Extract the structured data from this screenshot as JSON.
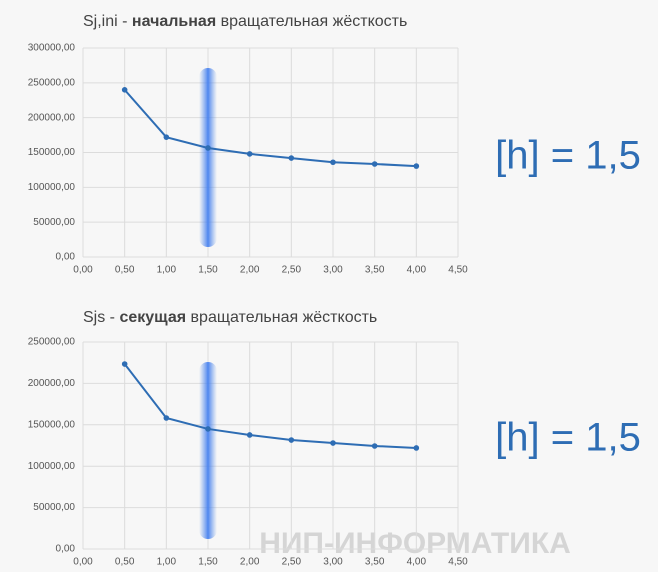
{
  "chart_data": [
    {
      "type": "line",
      "title": {
        "prefix": "Sj,ini - ",
        "bold": "начальная",
        "suffix": " вращательная жёсткость"
      },
      "annotation": "[h] = 1,5",
      "x": [
        0.5,
        1.0,
        1.5,
        2.0,
        2.5,
        3.0,
        3.5,
        4.0
      ],
      "series": [
        {
          "color": "#2e6db4",
          "values": [
            240000,
            172000,
            156500,
            148000,
            142000,
            136000,
            133500,
            130500
          ]
        }
      ],
      "xlim": [
        0,
        4.5
      ],
      "xticks": [
        {
          "value": 0,
          "label": "0,00"
        },
        {
          "value": 0.5,
          "label": "0,50"
        },
        {
          "value": 1,
          "label": "1,00"
        },
        {
          "value": 1.5,
          "label": "1,50"
        },
        {
          "value": 2,
          "label": "2,00"
        },
        {
          "value": 2.5,
          "label": "2,50"
        },
        {
          "value": 3,
          "label": "3,00"
        },
        {
          "value": 3.5,
          "label": "3,50"
        },
        {
          "value": 4,
          "label": "4,00"
        },
        {
          "value": 4.5,
          "label": "4,50"
        }
      ],
      "ylim": [
        0,
        300000
      ],
      "yticks": [
        {
          "value": 0,
          "label": "0,00"
        },
        {
          "value": 50000,
          "label": "50000,00"
        },
        {
          "value": 100000,
          "label": "100000,00"
        },
        {
          "value": 150000,
          "label": "150000,00"
        },
        {
          "value": 200000,
          "label": "200000,00"
        },
        {
          "value": 250000,
          "label": "250000,00"
        },
        {
          "value": 300000,
          "label": "300000,00"
        }
      ],
      "grid": true
    },
    {
      "type": "line",
      "title": {
        "prefix": "Sjs - ",
        "bold": "секущая",
        "suffix": " вращательная жёсткость"
      },
      "annotation": "[h] = 1,5",
      "x": [
        0.5,
        1.0,
        1.5,
        2.0,
        2.5,
        3.0,
        3.5,
        4.0
      ],
      "series": [
        {
          "color": "#2e6db4",
          "values": [
            223400,
            158200,
            145000,
            137700,
            131600,
            128000,
            124400,
            122000
          ]
        }
      ],
      "xlim": [
        0,
        4.5
      ],
      "xticks": [
        {
          "value": 0,
          "label": "0,00"
        },
        {
          "value": 0.5,
          "label": "0,50"
        },
        {
          "value": 1,
          "label": "1,00"
        },
        {
          "value": 1.5,
          "label": "1,50"
        },
        {
          "value": 2,
          "label": "2,00"
        },
        {
          "value": 2.5,
          "label": "2,50"
        },
        {
          "value": 3,
          "label": "3,00"
        },
        {
          "value": 3.5,
          "label": "3,50"
        },
        {
          "value": 4,
          "label": "4,00"
        },
        {
          "value": 4.5,
          "label": "4,50"
        }
      ],
      "ylim": [
        0,
        250000
      ],
      "yticks": [
        {
          "value": 0,
          "label": "0,00"
        },
        {
          "value": 50000,
          "label": "50000,00"
        },
        {
          "value": 100000,
          "label": "100000,00"
        },
        {
          "value": 150000,
          "label": "150000,00"
        },
        {
          "value": 200000,
          "label": "200000,00"
        },
        {
          "value": 250000,
          "label": "250000,00"
        }
      ],
      "grid": true
    }
  ],
  "watermark": "НИП-ИНФОРМАТИКА"
}
